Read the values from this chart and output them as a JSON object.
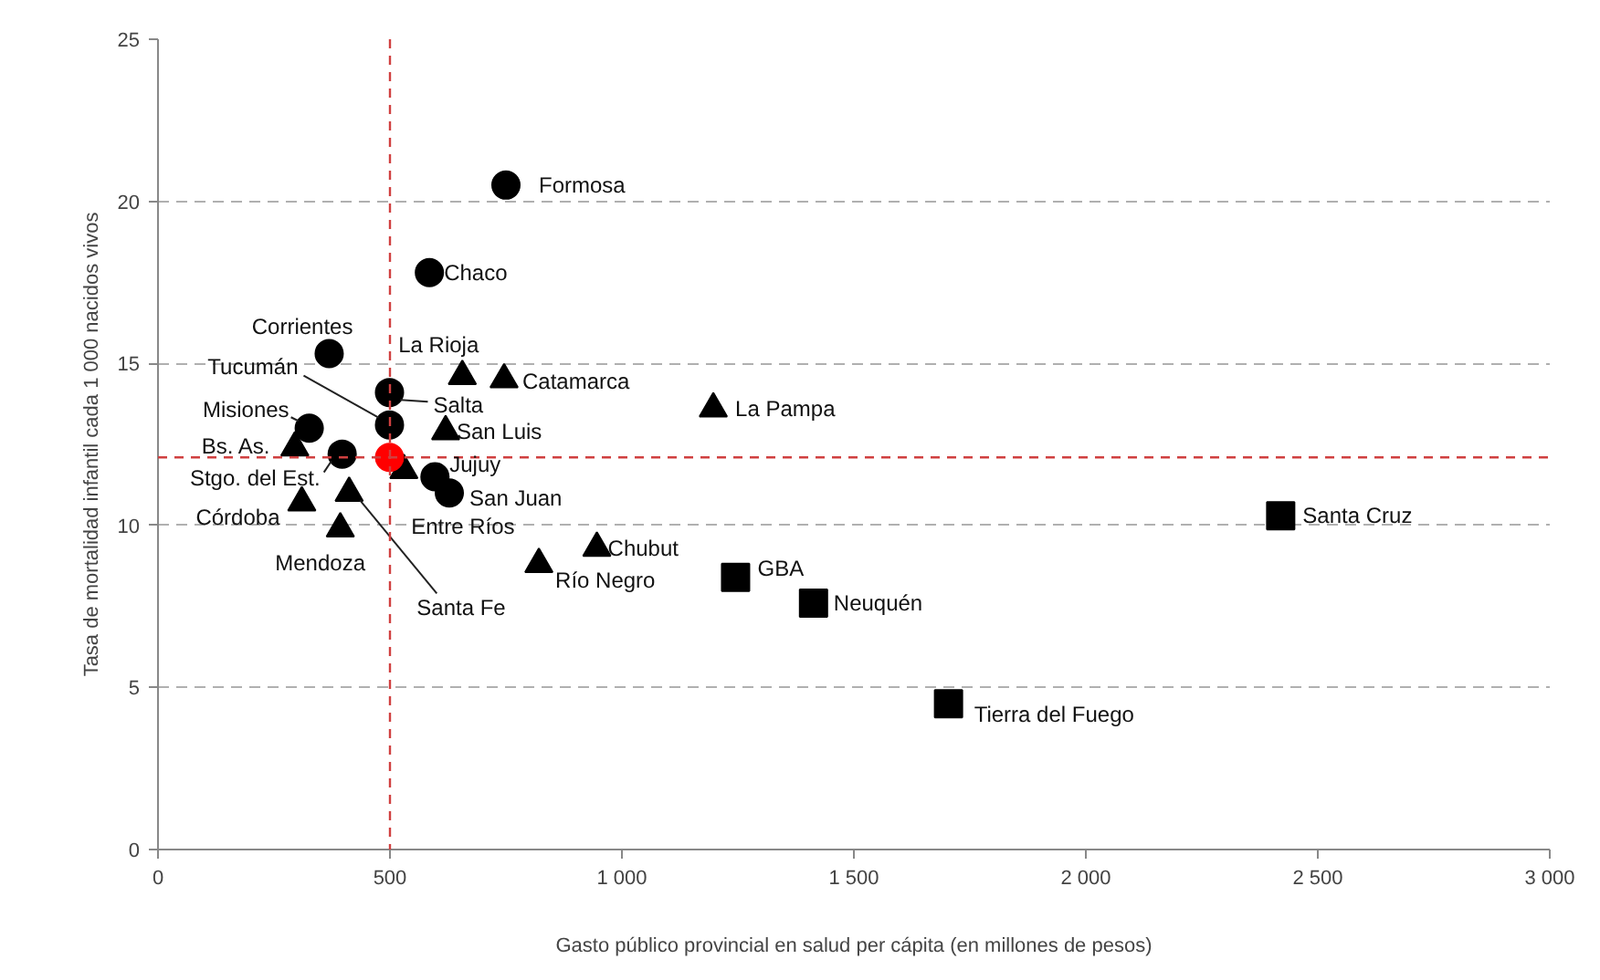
{
  "chart_data": {
    "type": "scatter",
    "xlabel": "Gasto público provincial en salud per cápita (en millones de pesos)",
    "ylabel": "Tasa de mortalidad infantil cada 1 000 nacidos vivos",
    "xlim": [
      0,
      3000
    ],
    "xticks": [
      0,
      500,
      {
        "value": 1000,
        "label": "1 000"
      },
      {
        "value": 1500,
        "label": "1 500"
      },
      {
        "value": 2000,
        "label": "2 000"
      },
      {
        "value": 2500,
        "label": "2 500"
      },
      {
        "value": 3000,
        "label": "3 000"
      }
    ],
    "ylim": [
      0,
      25
    ],
    "yticks": [
      0,
      5,
      10,
      15,
      20,
      25
    ],
    "grid": "y",
    "series": [
      {
        "marker": "circle",
        "color": "#000000",
        "x": [
          750,
          585,
          369,
          499,
          499,
          326,
          397,
          597,
          628
        ],
        "values": [
          20.5,
          17.8,
          15.3,
          13.1,
          14.1,
          13.0,
          12.2,
          11.5,
          11.0
        ]
      },
      {
        "marker": "triangle",
        "color": "#000000",
        "x": [
          295,
          310,
          412,
          393,
          530,
          656,
          746,
          620,
          1197,
          946,
          821
        ],
        "values": [
          12.4,
          10.7,
          11.0,
          9.9,
          11.7,
          14.6,
          14.5,
          12.9,
          13.6,
          9.3,
          8.8
        ]
      },
      {
        "marker": "square",
        "color": "#000000",
        "x": [
          1245,
          1413,
          2420,
          1704
        ],
        "values": [
          8.4,
          7.6,
          10.3,
          4.5
        ]
      },
      {
        "marker": "circle",
        "color": "#ff0000",
        "x": [
          499
        ],
        "values": [
          12.1
        ]
      }
    ],
    "ref_lines": [
      {
        "axis": "x",
        "value": 500,
        "color": "#d04040",
        "line_style": "dashed"
      },
      {
        "axis": "y",
        "value": 12.1,
        "color": "#d04040",
        "line_style": "dashed"
      }
    ],
    "annotations": [
      {
        "text": "Formosa",
        "x": 750,
        "y": 20.5
      },
      {
        "text": "Chaco",
        "x": 585,
        "y": 17.8
      },
      {
        "text": "Corrientes",
        "x": 369,
        "y": 15.3
      },
      {
        "text": "Tucumán",
        "x": 499,
        "y": 13.1
      },
      {
        "text": "Salta",
        "x": 499,
        "y": 14.1
      },
      {
        "text": "Misiones",
        "x": 326,
        "y": 13.0
      },
      {
        "text": "Stgo. del Est.",
        "x": 397,
        "y": 12.2
      },
      {
        "text": "Jujuy",
        "x": 597,
        "y": 11.5
      },
      {
        "text": "San Juan",
        "x": 628,
        "y": 11.0
      },
      {
        "text": "Bs. As.",
        "x": 295,
        "y": 12.4
      },
      {
        "text": "Córdoba",
        "x": 310,
        "y": 10.7
      },
      {
        "text": "Santa Fe",
        "x": 412,
        "y": 11.0
      },
      {
        "text": "Mendoza",
        "x": 393,
        "y": 9.9
      },
      {
        "text": "Entre Ríos",
        "x": 530,
        "y": 11.7
      },
      {
        "text": "La Rioja",
        "x": 656,
        "y": 14.6
      },
      {
        "text": "Catamarca",
        "x": 746,
        "y": 14.5
      },
      {
        "text": "San Luis",
        "x": 620,
        "y": 12.9
      },
      {
        "text": "La Pampa",
        "x": 1197,
        "y": 13.6
      },
      {
        "text": "Chubut",
        "x": 946,
        "y": 9.3
      },
      {
        "text": "Río Negro",
        "x": 821,
        "y": 8.8
      },
      {
        "text": "GBA",
        "x": 1245,
        "y": 8.4
      },
      {
        "text": "Neuquén",
        "x": 1413,
        "y": 7.6
      },
      {
        "text": "Santa Cruz",
        "x": 2420,
        "y": 10.3
      },
      {
        "text": "Tierra del Fuego",
        "x": 1704,
        "y": 4.5
      }
    ]
  }
}
